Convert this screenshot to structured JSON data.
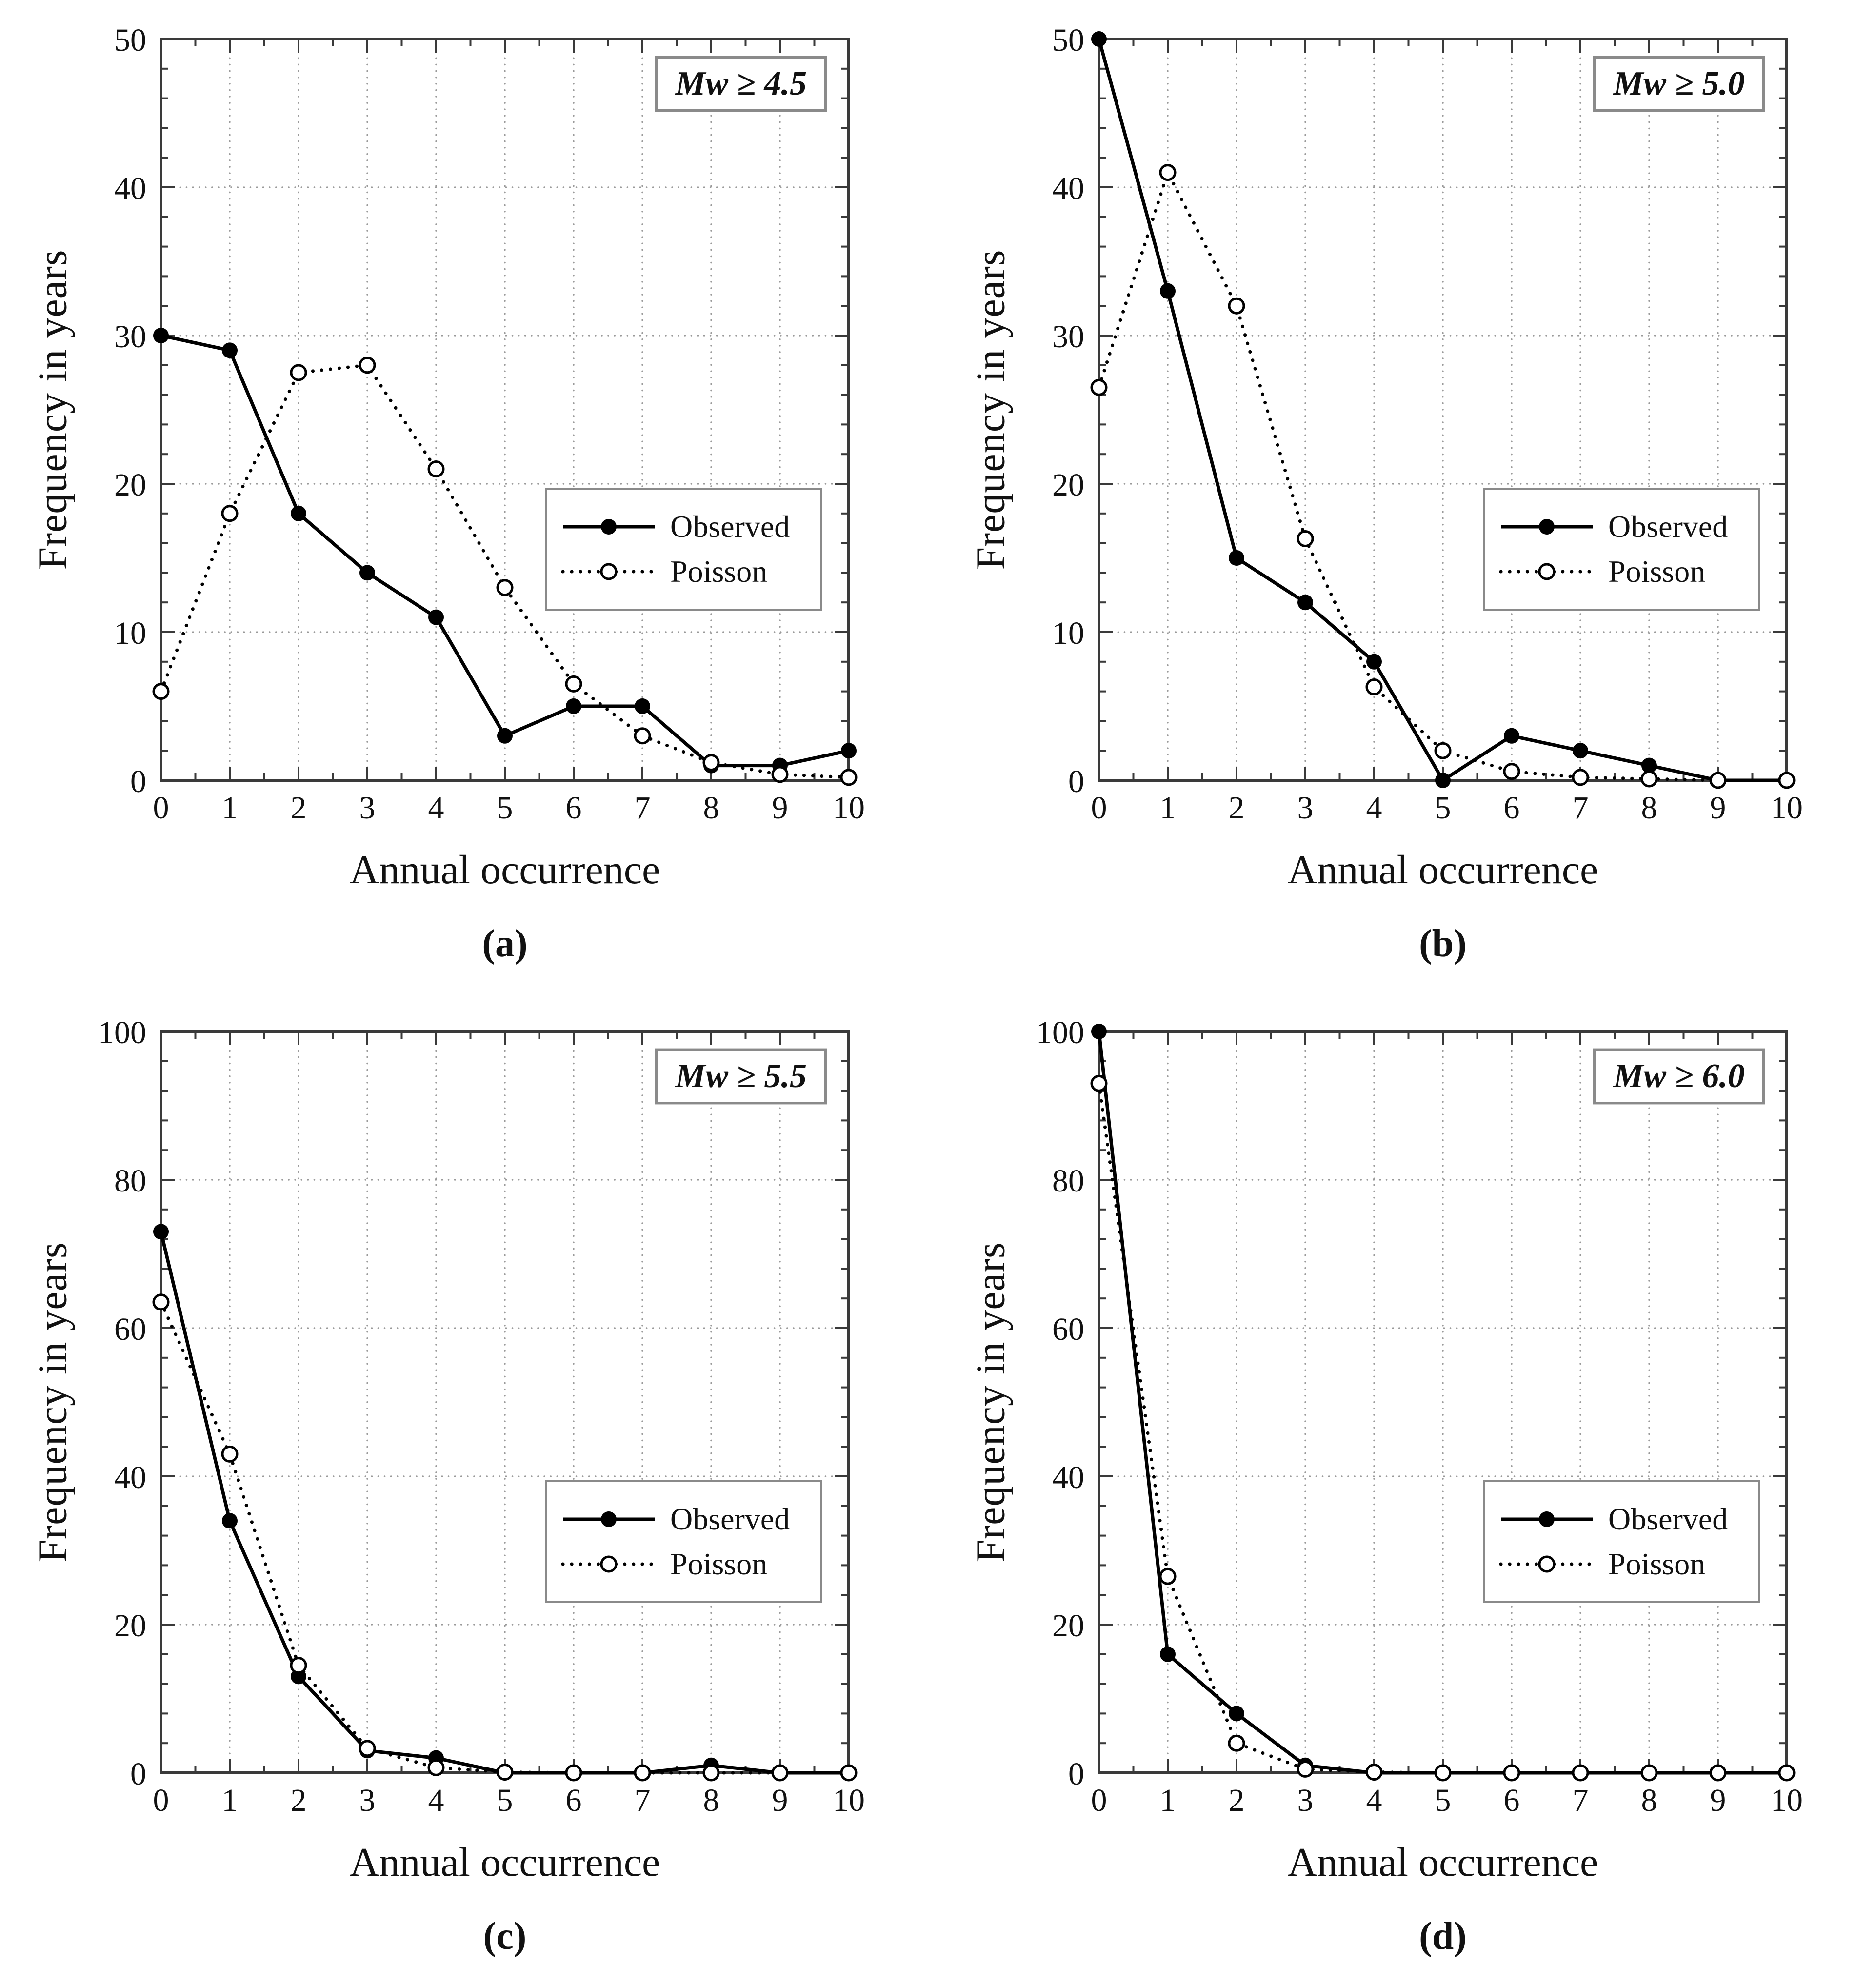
{
  "figure": {
    "ylabel": "Frequency in years",
    "xlabel": "Annual occurrence"
  },
  "legend": {
    "observed": "Observed",
    "poisson": "Poisson"
  },
  "colors": {
    "line": "#000000",
    "marker_fill": "#000000",
    "marker_open_fill": "#ffffff",
    "grid": "#9a9a9a",
    "frame": "#3a3a3a",
    "box_border": "#8a8a8a",
    "background": "#ffffff",
    "text": "#111111"
  },
  "chart_data": [
    {
      "id": "a",
      "type": "line",
      "title": "Mw ≥ 4.5",
      "caption": "(a)",
      "xlabel": "Annual occurrence",
      "ylabel": "Frequency in years",
      "x": [
        0,
        1,
        2,
        3,
        4,
        5,
        6,
        7,
        8,
        9,
        10
      ],
      "ylim": [
        0,
        50
      ],
      "yticks": [
        0,
        10,
        20,
        30,
        40,
        50
      ],
      "y_minor_step": 2,
      "grid": true,
      "legend_position": "center-right",
      "series": [
        {
          "name": "Observed",
          "style": "solid-filled-circle",
          "values": [
            30,
            29,
            18,
            14,
            11,
            3,
            5,
            5,
            1,
            1,
            2
          ]
        },
        {
          "name": "Poisson",
          "style": "dotted-open-circle",
          "values": [
            6,
            18,
            27.5,
            28,
            21,
            13,
            6.5,
            3,
            1.2,
            0.4,
            0.2
          ]
        }
      ]
    },
    {
      "id": "b",
      "type": "line",
      "title": "Mw ≥ 5.0",
      "caption": "(b)",
      "xlabel": "Annual occurrence",
      "ylabel": "Frequency in years",
      "x": [
        0,
        1,
        2,
        3,
        4,
        5,
        6,
        7,
        8,
        9,
        10
      ],
      "ylim": [
        0,
        50
      ],
      "yticks": [
        0,
        10,
        20,
        30,
        40,
        50
      ],
      "y_minor_step": 2,
      "grid": true,
      "legend_position": "center-right",
      "series": [
        {
          "name": "Observed",
          "style": "solid-filled-circle",
          "values": [
            50,
            33,
            15,
            12,
            8,
            0,
            3,
            2,
            1,
            0,
            0
          ]
        },
        {
          "name": "Poisson",
          "style": "dotted-open-circle",
          "values": [
            26.5,
            41,
            32,
            16.3,
            6.3,
            2,
            0.6,
            0.2,
            0.1,
            0,
            0
          ]
        }
      ]
    },
    {
      "id": "c",
      "type": "line",
      "title": "Mw ≥ 5.5",
      "caption": "(c)",
      "xlabel": "Annual occurrence",
      "ylabel": "Frequency in years",
      "x": [
        0,
        1,
        2,
        3,
        4,
        5,
        6,
        7,
        8,
        9,
        10
      ],
      "ylim": [
        0,
        100
      ],
      "yticks": [
        0,
        20,
        40,
        60,
        80,
        100
      ],
      "y_minor_step": 4,
      "grid": true,
      "legend_position": "center-right",
      "series": [
        {
          "name": "Observed",
          "style": "solid-filled-circle",
          "values": [
            73,
            34,
            13,
            3,
            2,
            0,
            0,
            0,
            1,
            0,
            0
          ]
        },
        {
          "name": "Poisson",
          "style": "dotted-open-circle",
          "values": [
            63.5,
            43,
            14.5,
            3.3,
            0.7,
            0.1,
            0,
            0,
            0,
            0,
            0
          ]
        }
      ]
    },
    {
      "id": "d",
      "type": "line",
      "title": "Mw ≥ 6.0",
      "caption": "(d)",
      "xlabel": "Annual occurrence",
      "ylabel": "Frequency in years",
      "x": [
        0,
        1,
        2,
        3,
        4,
        5,
        6,
        7,
        8,
        9,
        10
      ],
      "ylim": [
        0,
        100
      ],
      "yticks": [
        0,
        20,
        40,
        60,
        80,
        100
      ],
      "y_minor_step": 4,
      "grid": true,
      "legend_position": "center-right",
      "series": [
        {
          "name": "Observed",
          "style": "solid-filled-circle",
          "values": [
            100,
            16,
            8,
            1,
            0,
            0,
            0,
            0,
            0,
            0,
            0
          ]
        },
        {
          "name": "Poisson",
          "style": "dotted-open-circle",
          "values": [
            93,
            26.5,
            4,
            0.5,
            0.1,
            0,
            0,
            0,
            0,
            0,
            0
          ]
        }
      ]
    }
  ]
}
